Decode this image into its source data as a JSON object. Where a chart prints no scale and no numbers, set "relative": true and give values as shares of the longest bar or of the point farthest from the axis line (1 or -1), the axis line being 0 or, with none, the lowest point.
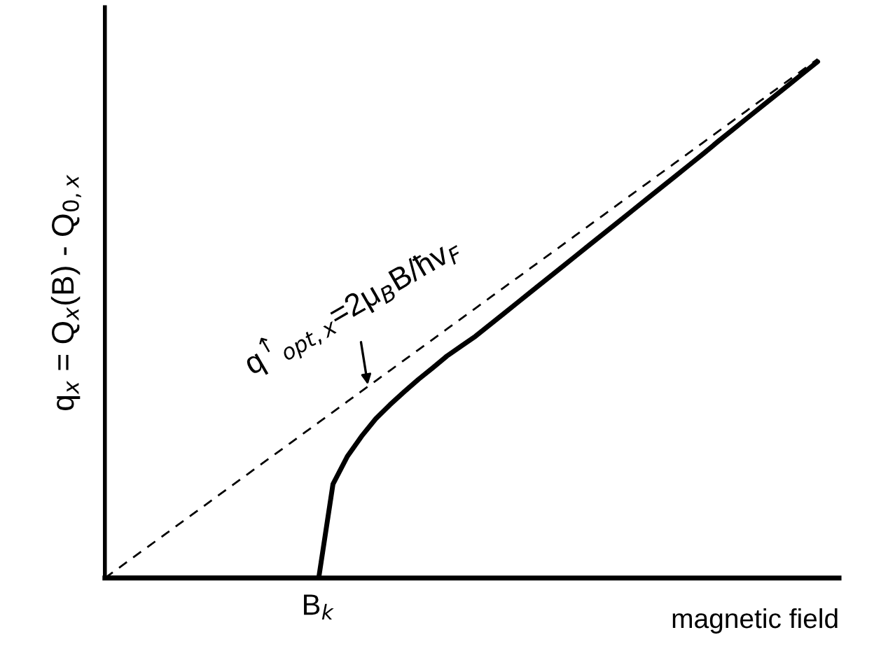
{
  "chart_data": {
    "type": "line",
    "relative": true,
    "xlabel": "magnetic field",
    "ylabel": "q$_{x}$ = Q$_{x}$(B) - Q$_{0,x}$",
    "categories": [
      null,
      null,
      null,
      null,
      null,
      null,
      null,
      null,
      null,
      null,
      null,
      null,
      null,
      null,
      null,
      null,
      null,
      null,
      null,
      null,
      null,
      null,
      null,
      null,
      null,
      null,
      null,
      null,
      null,
      null,
      null,
      null,
      null,
      null,
      null,
      null,
      null,
      null,
      null,
      null,
      null,
      null,
      null,
      null,
      null,
      null,
      null,
      null,
      null,
      null,
      null
    ],
    "series": [
      {
        "color": "#000000",
        "line_style": "dashed",
        "values": [
          0,
          0.02,
          0.04,
          0.06,
          0.08,
          0.1,
          0.12,
          0.14,
          0.16,
          0.18,
          0.2,
          0.22,
          0.24,
          0.26,
          0.28,
          0.3,
          0.32,
          0.34,
          0.36,
          0.38,
          0.4,
          0.42,
          0.44,
          0.46,
          0.48,
          0.5,
          0.52,
          0.54,
          0.56,
          0.58,
          0.6,
          0.62,
          0.64,
          0.66,
          0.68,
          0.7,
          0.72,
          0.74,
          0.76,
          0.78,
          0.8,
          0.82,
          0.84,
          0.86,
          0.88,
          0.9,
          0.92,
          0.94,
          0.96,
          0.98,
          1.0
        ]
      },
      {
        "color": "#000000",
        "line_style": "solid",
        "values": [
          0,
          0,
          0,
          0,
          0,
          0,
          0,
          0,
          0,
          0,
          0,
          0,
          0,
          0,
          0,
          0,
          0.181,
          0.234,
          0.273,
          0.307,
          0.334,
          0.359,
          0.383,
          0.405,
          0.428,
          0.447,
          0.466,
          0.488,
          0.51,
          0.532,
          0.554,
          0.576,
          0.598,
          0.62,
          0.642,
          0.664,
          0.686,
          0.708,
          0.73,
          0.752,
          0.774,
          0.796,
          0.818,
          0.841,
          0.863,
          0.885,
          0.907,
          0.929,
          0.951,
          0.973,
          0.995
        ]
      }
    ],
    "annotations": [
      "q$^{↑}$$_{opt,x}$=2μ$_{B}$B/ħv$_{F}$",
      "B$_{k}$"
    ]
  }
}
